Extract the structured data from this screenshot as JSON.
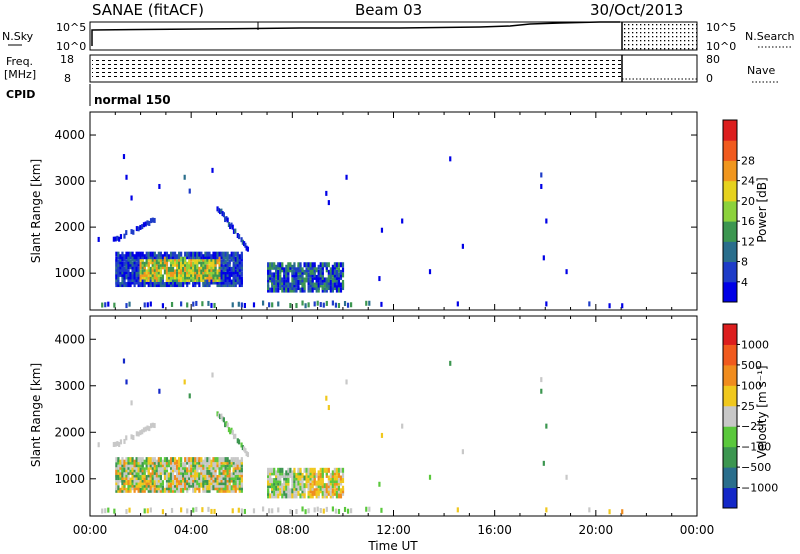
{
  "header": {
    "station": "SANAE (fitACF)",
    "beam": "Beam 03",
    "date": "30/Oct/2013"
  },
  "top_panels": {
    "nsky_label": "N.Sky",
    "nsky_ticks": [
      "10^5",
      "10^0"
    ],
    "nsearch_label": "N.Search",
    "nsearch_ticks": [
      "10^5",
      "10^0"
    ],
    "freq_label_1": "Freq.",
    "freq_label_2": "[MHz]",
    "freq_ticks": [
      "18",
      "8"
    ],
    "nave_label": "Nave",
    "nave_ticks": [
      "80",
      "0"
    ],
    "cpid_label": "CPID",
    "cpid_value": "normal 150"
  },
  "colors": {
    "blue": "#1428c8",
    "darkblue": "#0a14a0",
    "teal": "#2a8a80",
    "green": "#3cb43c",
    "lime": "#8cd23c",
    "yellow": "#e6d21e",
    "orange": "#f08c1e",
    "red": "#dc1e1e",
    "gray": "#c0c0c0"
  },
  "chart_data": [
    {
      "type": "heatmap",
      "name": "Power",
      "xlabel": "",
      "ylabel": "Slant Range [km]",
      "yticks": [
        "1000",
        "2000",
        "3000",
        "4000"
      ],
      "ylim": [
        200,
        4500
      ],
      "xlim_hours": [
        0,
        24
      ],
      "colorbar": {
        "label": "Power [dB]",
        "ticks": [
          "4",
          "8",
          "12",
          "16",
          "20",
          "24",
          "28"
        ],
        "colors": [
          "#0000e6",
          "#1e3cc8",
          "#2a6e8c",
          "#3c9650",
          "#8cd23c",
          "#e6d21e",
          "#f0961e",
          "#f05a1e",
          "#dc1e1e"
        ]
      },
      "regions": [
        {
          "t0": 1.0,
          "t1": 6.0,
          "r0": 700,
          "r1": 1400,
          "level": "high"
        },
        {
          "t0": 7.0,
          "t1": 10.0,
          "r0": 600,
          "r1": 1200,
          "level": "mid"
        },
        {
          "t0": 1.0,
          "t1": 2.5,
          "r0": 1600,
          "r1": 2100,
          "level": "low"
        },
        {
          "t0": 5.0,
          "t1": 6.0,
          "r0": 1500,
          "r1": 2400,
          "level": "low"
        }
      ]
    },
    {
      "type": "heatmap",
      "name": "Velocity",
      "xlabel": "Time UT",
      "ylabel": "Slant Range [km]",
      "yticks": [
        "1000",
        "2000",
        "3000",
        "4000"
      ],
      "xticks": [
        "00:00",
        "04:00",
        "08:00",
        "12:00",
        "16:00",
        "20:00",
        "00:00"
      ],
      "ylim": [
        200,
        4500
      ],
      "xlim_hours": [
        0,
        24
      ],
      "colorbar": {
        "label": "Velocity [m s⁻¹]",
        "ticks": [
          "1000",
          "500",
          "100",
          "25",
          "−25",
          "−100",
          "−500",
          "−1000"
        ],
        "colors": [
          "#1428c8",
          "#2a6e8c",
          "#3c9650",
          "#5ac83c",
          "#c8c8c8",
          "#f0c81e",
          "#f08c1e",
          "#f05a1e",
          "#dc1e1e"
        ]
      }
    }
  ]
}
